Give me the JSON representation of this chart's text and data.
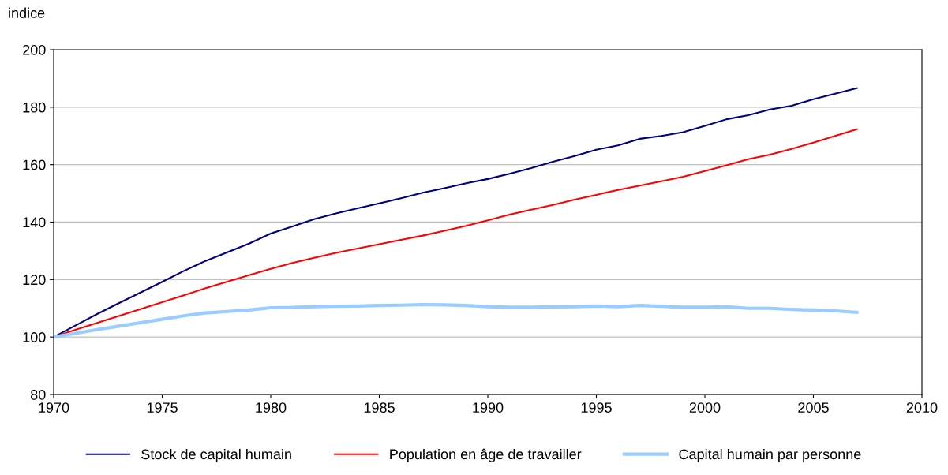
{
  "chart_data": {
    "type": "line",
    "ylabel": "indice",
    "x": [
      1970,
      1971,
      1972,
      1973,
      1974,
      1975,
      1976,
      1977,
      1978,
      1979,
      1980,
      1981,
      1982,
      1983,
      1984,
      1985,
      1986,
      1987,
      1988,
      1989,
      1990,
      1991,
      1992,
      1993,
      1994,
      1995,
      1996,
      1997,
      1998,
      1999,
      2000,
      2001,
      2002,
      2003,
      2004,
      2005,
      2006,
      2007
    ],
    "series": [
      {
        "name": "Stock de capital humain",
        "color": "#000080",
        "values": [
          100,
          104,
          108,
          111.8,
          115.5,
          119.2,
          123,
          126.5,
          129.5,
          132.5,
          136,
          138.5,
          141,
          143,
          144.8,
          146.5,
          148.3,
          150.2,
          151.8,
          153.5,
          155,
          156.8,
          158.8,
          161,
          163,
          165.2,
          166.7,
          169,
          170,
          171.3,
          173.5,
          175.8,
          177.2,
          179.2,
          180.5,
          182.8,
          184.7,
          186.6
        ]
      },
      {
        "name": "Population en âge de travailler",
        "color": "#ff0000",
        "values": [
          100,
          102.5,
          104.9,
          107.3,
          109.7,
          112.1,
          114.5,
          117,
          119.3,
          121.5,
          123.7,
          125.8,
          127.6,
          129.3,
          130.8,
          132.3,
          133.8,
          135.3,
          137,
          138.7,
          140.6,
          142.6,
          144.3,
          146,
          147.8,
          149.5,
          151.2,
          152.7,
          154.2,
          155.8,
          157.8,
          159.8,
          161.9,
          163.5,
          165.5,
          167.7,
          170,
          172.3
        ]
      },
      {
        "name": "Capital humain par personne",
        "color": "#99ccff",
        "values": [
          100,
          101.3,
          102.6,
          103.8,
          105,
          106.2,
          107.4,
          108.4,
          108.9,
          109.4,
          110.2,
          110.3,
          110.6,
          110.7,
          110.8,
          111,
          111.1,
          111.3,
          111.2,
          111,
          110.6,
          110.4,
          110.4,
          110.5,
          110.6,
          110.8,
          110.6,
          111,
          110.7,
          110.4,
          110.4,
          110.5,
          110,
          110,
          109.6,
          109.4,
          109.1,
          108.6
        ]
      }
    ],
    "xlim": [
      1970,
      2010
    ],
    "xticks": [
      1970,
      1975,
      1980,
      1985,
      1990,
      1995,
      2000,
      2005,
      2010
    ],
    "ylim": [
      80,
      200
    ],
    "yticks": [
      80,
      100,
      120,
      140,
      160,
      180,
      200
    ],
    "grid": "y",
    "legend": "bottom",
    "line_style": "solid",
    "marker": "none"
  }
}
